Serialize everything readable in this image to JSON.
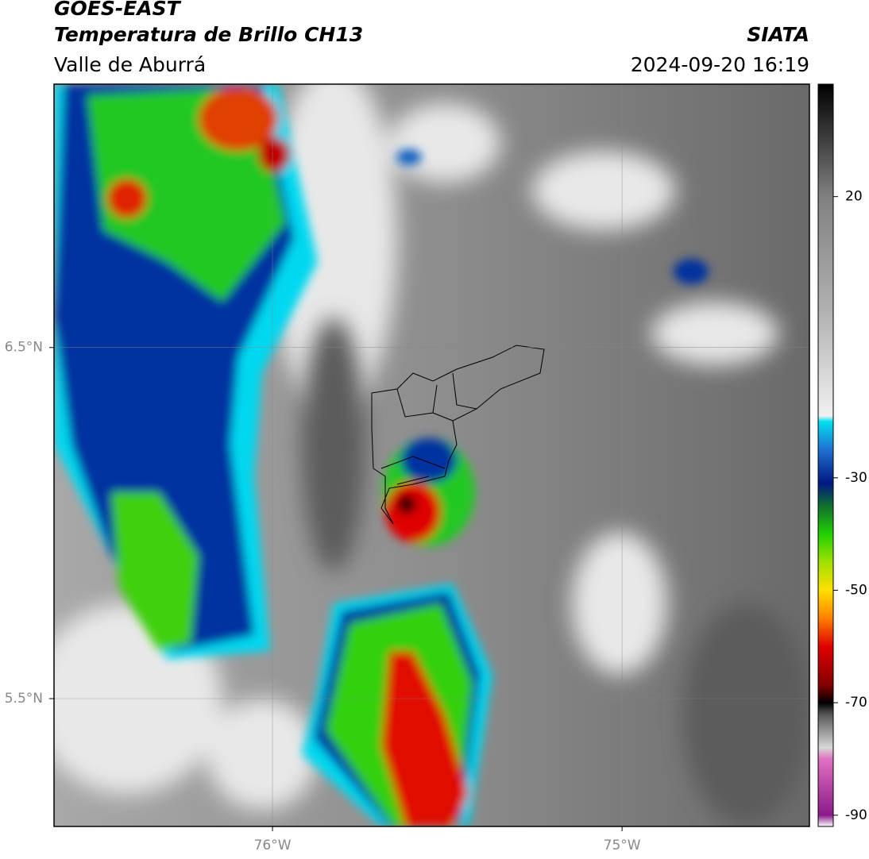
{
  "header": {
    "title": "GOES-EAST",
    "subtitle": "Temperatura de Brillo CH13",
    "region": "Valle de Aburrá",
    "source": "SIATA",
    "datetime": "2024-09-20 16:19"
  },
  "map": {
    "xlim": [
      -76.625,
      -74.464
    ],
    "ylim": [
      5.136,
      7.25
    ],
    "xticks": [
      {
        "value": -76,
        "label": "76°W"
      },
      {
        "value": -75,
        "label": "75°W"
      }
    ],
    "yticks": [
      {
        "value": 6.5,
        "label": "6.5°N"
      },
      {
        "value": 5.5,
        "label": "5.5°N"
      }
    ],
    "grid": true
  },
  "colorbar": {
    "lim": [
      -92,
      40
    ],
    "ticks": [
      20,
      -30,
      -50,
      -70,
      -90
    ],
    "stops": [
      {
        "value": -92,
        "color": "#ffffff"
      },
      {
        "value": -90,
        "color": "#8b1a8b"
      },
      {
        "value": -80,
        "color": "#e070c0"
      },
      {
        "value": -78,
        "color": "#d8d8d8"
      },
      {
        "value": -72,
        "color": "#555555"
      },
      {
        "value": -70,
        "color": "#000000"
      },
      {
        "value": -67,
        "color": "#800000"
      },
      {
        "value": -60,
        "color": "#e00000"
      },
      {
        "value": -55,
        "color": "#ff8000"
      },
      {
        "value": -50,
        "color": "#ffe000"
      },
      {
        "value": -45,
        "color": "#a0e000"
      },
      {
        "value": -40,
        "color": "#20d000"
      },
      {
        "value": -35,
        "color": "#107030"
      },
      {
        "value": -31,
        "color": "#001880"
      },
      {
        "value": -25,
        "color": "#2070d0"
      },
      {
        "value": -20,
        "color": "#00e0f0"
      },
      {
        "value": -19,
        "color": "#f0f0f0"
      },
      {
        "value": 0,
        "color": "#b0b0b0"
      },
      {
        "value": 20,
        "color": "#808080"
      },
      {
        "value": 30,
        "color": "#404040"
      },
      {
        "value": 40,
        "color": "#000000"
      }
    ]
  }
}
